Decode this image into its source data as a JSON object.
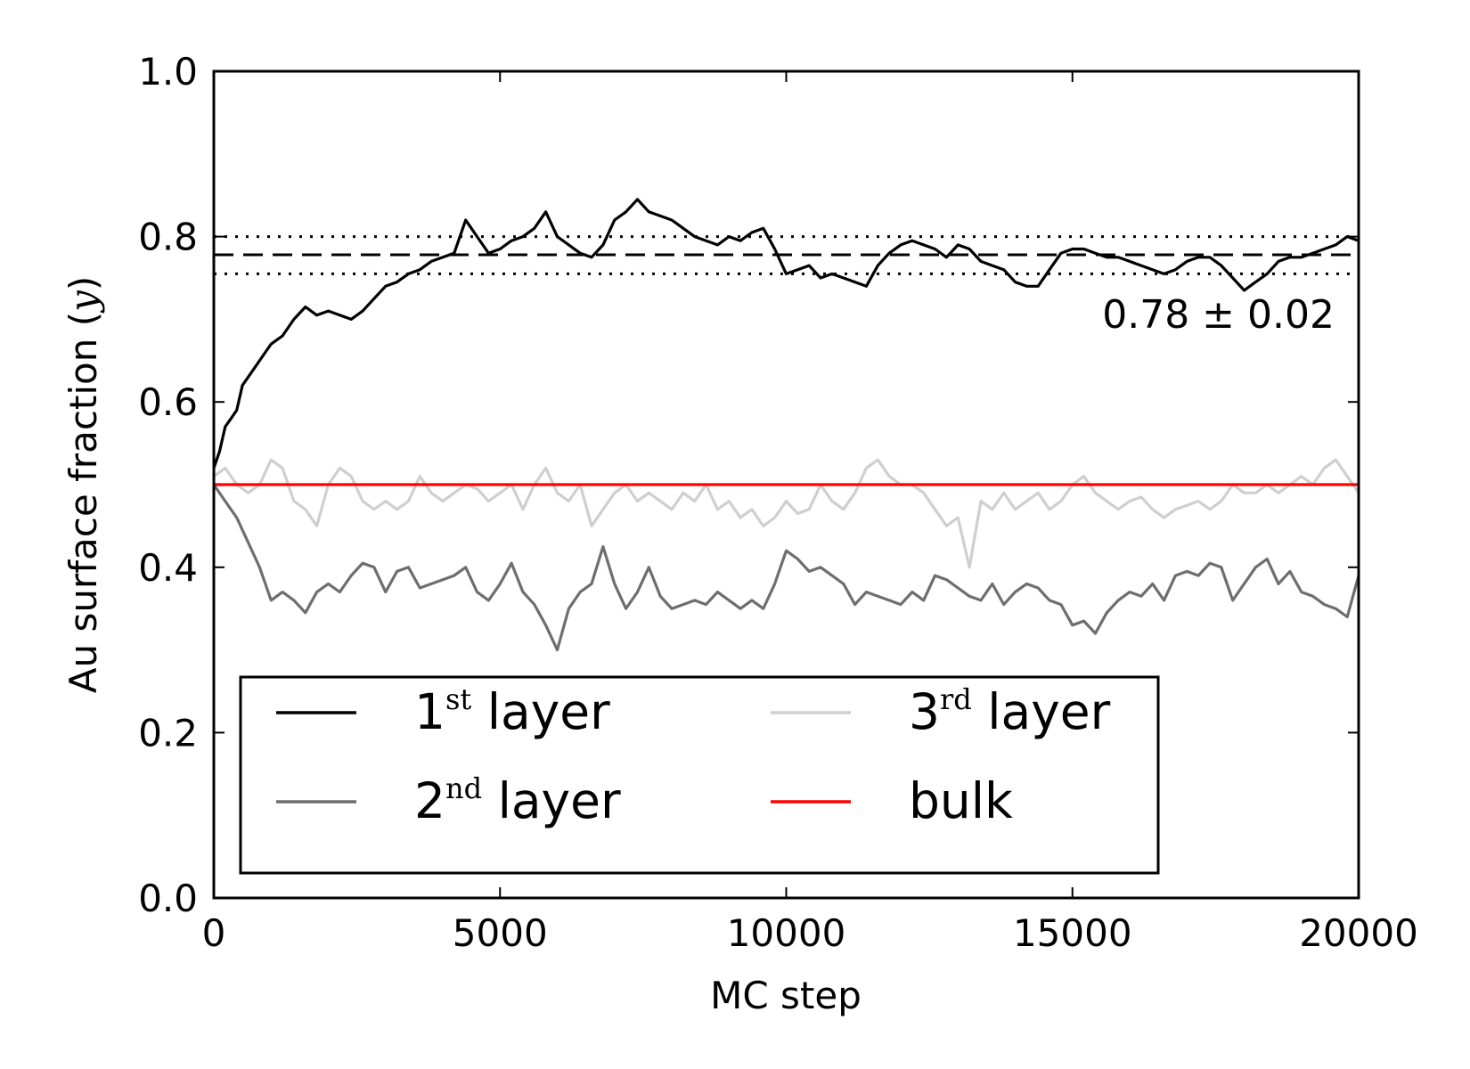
{
  "chart_data": {
    "type": "line",
    "xlabel": "MC step",
    "ylabel": "Au surface fraction",
    "ylabel_symbol": "y",
    "xlim": [
      0,
      20000
    ],
    "ylim": [
      0.0,
      1.0
    ],
    "xticks": [
      "0",
      "5000",
      "10000",
      "15000",
      "20000"
    ],
    "xtick_values": [
      0,
      5000,
      10000,
      15000,
      20000
    ],
    "yticks": [
      "0.0",
      "0.2",
      "0.4",
      "0.6",
      "0.8",
      "1.0"
    ],
    "ytick_values": [
      0.0,
      0.2,
      0.4,
      0.6,
      0.8,
      1.0
    ],
    "grid": false,
    "legend_position": "lower-center",
    "legend_columns": 2,
    "annotation": {
      "text": "0.78 ± 0.02",
      "mean": 0.778,
      "upper": 0.8,
      "lower": 0.755
    },
    "series": [
      {
        "name": "1st layer",
        "label_number": "1",
        "label_sup": "st",
        "label_word": "layer",
        "color": "#000000",
        "x": [
          0,
          100,
          200,
          300,
          400,
          500,
          700,
          900,
          1000,
          1200,
          1400,
          1600,
          1800,
          2000,
          2200,
          2400,
          2600,
          2800,
          3000,
          3200,
          3400,
          3600,
          3800,
          4000,
          4200,
          4400,
          4600,
          4800,
          5000,
          5200,
          5400,
          5600,
          5800,
          6000,
          6200,
          6400,
          6600,
          6800,
          7000,
          7200,
          7400,
          7600,
          7800,
          8000,
          8200,
          8400,
          8600,
          8800,
          9000,
          9200,
          9400,
          9600,
          9800,
          10000,
          10200,
          10400,
          10600,
          10800,
          11000,
          11200,
          11400,
          11600,
          11800,
          12000,
          12200,
          12400,
          12600,
          12800,
          13000,
          13200,
          13400,
          13600,
          13800,
          14000,
          14200,
          14400,
          14600,
          14800,
          15000,
          15200,
          15400,
          15600,
          15800,
          16000,
          16200,
          16400,
          16600,
          16800,
          17000,
          17200,
          17400,
          17600,
          17800,
          18000,
          18200,
          18400,
          18600,
          18800,
          19000,
          19200,
          19400,
          19600,
          19800,
          20000
        ],
        "values": [
          0.52,
          0.54,
          0.57,
          0.58,
          0.59,
          0.62,
          0.64,
          0.66,
          0.67,
          0.68,
          0.7,
          0.715,
          0.705,
          0.71,
          0.705,
          0.7,
          0.71,
          0.725,
          0.74,
          0.745,
          0.755,
          0.76,
          0.77,
          0.775,
          0.78,
          0.82,
          0.8,
          0.78,
          0.785,
          0.795,
          0.8,
          0.81,
          0.83,
          0.8,
          0.79,
          0.78,
          0.775,
          0.79,
          0.82,
          0.83,
          0.845,
          0.83,
          0.825,
          0.82,
          0.81,
          0.8,
          0.795,
          0.79,
          0.8,
          0.795,
          0.805,
          0.81,
          0.785,
          0.755,
          0.76,
          0.765,
          0.75,
          0.755,
          0.75,
          0.745,
          0.74,
          0.765,
          0.78,
          0.79,
          0.795,
          0.79,
          0.785,
          0.775,
          0.79,
          0.785,
          0.77,
          0.765,
          0.76,
          0.745,
          0.74,
          0.74,
          0.76,
          0.78,
          0.785,
          0.785,
          0.78,
          0.775,
          0.775,
          0.77,
          0.765,
          0.76,
          0.755,
          0.76,
          0.77,
          0.775,
          0.775,
          0.765,
          0.75,
          0.735,
          0.745,
          0.755,
          0.77,
          0.775,
          0.775,
          0.78,
          0.785,
          0.79,
          0.8,
          0.795
        ]
      },
      {
        "name": "2nd layer",
        "label_number": "2",
        "label_sup": "nd",
        "label_word": "layer",
        "color": "#6e6e6e",
        "x": [
          0,
          200,
          400,
          600,
          800,
          1000,
          1200,
          1400,
          1600,
          1800,
          2000,
          2200,
          2400,
          2600,
          2800,
          3000,
          3200,
          3400,
          3600,
          3800,
          4000,
          4200,
          4400,
          4600,
          4800,
          5000,
          5200,
          5400,
          5600,
          5800,
          6000,
          6200,
          6400,
          6600,
          6800,
          7000,
          7200,
          7400,
          7600,
          7800,
          8000,
          8200,
          8400,
          8600,
          8800,
          9000,
          9200,
          9400,
          9600,
          9800,
          10000,
          10200,
          10400,
          10600,
          10800,
          11000,
          11200,
          11400,
          11600,
          11800,
          12000,
          12200,
          12400,
          12600,
          12800,
          13000,
          13200,
          13400,
          13600,
          13800,
          14000,
          14200,
          14400,
          14600,
          14800,
          15000,
          15200,
          15400,
          15600,
          15800,
          16000,
          16200,
          16400,
          16600,
          16800,
          17000,
          17200,
          17400,
          17600,
          17800,
          18000,
          18200,
          18400,
          18600,
          18800,
          19000,
          19200,
          19400,
          19600,
          19800,
          20000
        ],
        "values": [
          0.5,
          0.48,
          0.46,
          0.43,
          0.4,
          0.36,
          0.37,
          0.36,
          0.345,
          0.37,
          0.38,
          0.37,
          0.39,
          0.405,
          0.4,
          0.37,
          0.395,
          0.4,
          0.375,
          0.38,
          0.385,
          0.39,
          0.4,
          0.37,
          0.36,
          0.38,
          0.405,
          0.37,
          0.355,
          0.33,
          0.3,
          0.35,
          0.37,
          0.38,
          0.425,
          0.38,
          0.35,
          0.37,
          0.4,
          0.365,
          0.35,
          0.355,
          0.36,
          0.355,
          0.37,
          0.36,
          0.35,
          0.36,
          0.35,
          0.38,
          0.42,
          0.41,
          0.395,
          0.4,
          0.39,
          0.38,
          0.355,
          0.37,
          0.365,
          0.36,
          0.355,
          0.37,
          0.36,
          0.39,
          0.385,
          0.375,
          0.365,
          0.36,
          0.38,
          0.355,
          0.37,
          0.38,
          0.375,
          0.36,
          0.355,
          0.33,
          0.335,
          0.32,
          0.345,
          0.36,
          0.37,
          0.365,
          0.38,
          0.36,
          0.39,
          0.395,
          0.39,
          0.405,
          0.4,
          0.36,
          0.38,
          0.4,
          0.41,
          0.38,
          0.395,
          0.37,
          0.365,
          0.355,
          0.35,
          0.34,
          0.39
        ],
        "note": ""
      },
      {
        "name": "3rd layer",
        "label_number": "3",
        "label_sup": "rd",
        "label_word": "layer",
        "color": "#cfcfcf",
        "x": [
          0,
          200,
          400,
          600,
          800,
          1000,
          1200,
          1400,
          1600,
          1800,
          2000,
          2200,
          2400,
          2600,
          2800,
          3000,
          3200,
          3400,
          3600,
          3800,
          4000,
          4200,
          4400,
          4600,
          4800,
          5000,
          5200,
          5400,
          5600,
          5800,
          6000,
          6200,
          6400,
          6600,
          6800,
          7000,
          7200,
          7400,
          7600,
          7800,
          8000,
          8200,
          8400,
          8600,
          8800,
          9000,
          9200,
          9400,
          9600,
          9800,
          10000,
          10200,
          10400,
          10600,
          10800,
          11000,
          11200,
          11400,
          11600,
          11800,
          12000,
          12200,
          12400,
          12600,
          12800,
          13000,
          13200,
          13400,
          13600,
          13800,
          14000,
          14200,
          14400,
          14600,
          14800,
          15000,
          15200,
          15400,
          15600,
          15800,
          16000,
          16200,
          16400,
          16600,
          16800,
          17000,
          17200,
          17400,
          17600,
          17800,
          18000,
          18200,
          18400,
          18600,
          18800,
          19000,
          19200,
          19400,
          19600,
          19800,
          20000
        ],
        "values": [
          0.51,
          0.52,
          0.5,
          0.49,
          0.5,
          0.53,
          0.52,
          0.48,
          0.47,
          0.45,
          0.5,
          0.52,
          0.51,
          0.48,
          0.47,
          0.48,
          0.47,
          0.48,
          0.51,
          0.49,
          0.48,
          0.49,
          0.5,
          0.495,
          0.48,
          0.49,
          0.5,
          0.47,
          0.5,
          0.52,
          0.49,
          0.48,
          0.5,
          0.45,
          0.47,
          0.49,
          0.5,
          0.48,
          0.49,
          0.48,
          0.47,
          0.49,
          0.48,
          0.5,
          0.47,
          0.48,
          0.46,
          0.47,
          0.45,
          0.46,
          0.48,
          0.465,
          0.47,
          0.5,
          0.48,
          0.47,
          0.49,
          0.52,
          0.53,
          0.51,
          0.5,
          0.5,
          0.49,
          0.47,
          0.45,
          0.46,
          0.4,
          0.48,
          0.47,
          0.49,
          0.47,
          0.48,
          0.49,
          0.47,
          0.48,
          0.5,
          0.51,
          0.49,
          0.48,
          0.47,
          0.48,
          0.485,
          0.47,
          0.46,
          0.47,
          0.475,
          0.48,
          0.47,
          0.48,
          0.5,
          0.49,
          0.49,
          0.5,
          0.49,
          0.5,
          0.51,
          0.5,
          0.52,
          0.53,
          0.51,
          0.49
        ]
      },
      {
        "name": "bulk",
        "label_number": "",
        "label_sup": "",
        "label_word": "bulk",
        "color": "#ff0000",
        "x": [
          0,
          20000
        ],
        "values": [
          0.5,
          0.5
        ]
      }
    ]
  }
}
